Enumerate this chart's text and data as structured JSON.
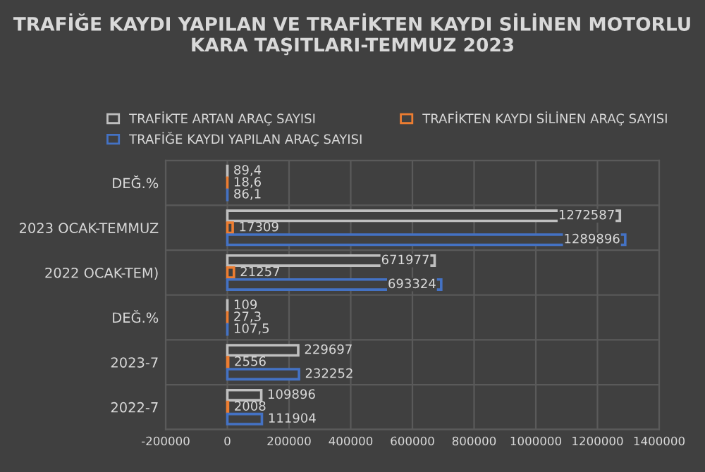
{
  "chart_data": {
    "type": "bar",
    "orientation": "horizontal",
    "title": "TRAFİĞE KAYDI YAPILAN VE TRAFİKTEN KAYDI SİLİNEN MOTORLU KARA TAŞITLARI-TEMMUZ 2023",
    "categories": [
      "DEĞ.%",
      "2023 OCAK-TEMMUZ",
      "2022 OCAK-TEM)",
      "DEĞ.%",
      "2023-7",
      "2022-7"
    ],
    "series": [
      {
        "name": "TRAFİKTE ARTAN ARAÇ SAYISI",
        "color": "#bfbfbf",
        "values": [
          89.4,
          1272587,
          671977,
          109,
          229697,
          109896
        ],
        "value_labels": [
          "89,4",
          "1272587",
          "671977",
          "109",
          "229697",
          "109896"
        ]
      },
      {
        "name": "TRAFİKTEN KAYDI SİLİNEN ARAÇ SAYISI",
        "color": "#ed7d31",
        "values": [
          18.6,
          17309,
          21257,
          27.3,
          2556,
          2008
        ],
        "value_labels": [
          "18,6",
          "17309",
          "21257",
          "27,3",
          "2556",
          "2008"
        ]
      },
      {
        "name": "TRAFİĞE KAYDI YAPILAN ARAÇ SAYISI",
        "color": "#4472c4",
        "values": [
          86.1,
          1289896,
          693324,
          107.5,
          232252,
          111904
        ],
        "value_labels": [
          "86,1",
          "1289896",
          "693324",
          "107,5",
          "232252",
          "111904"
        ]
      }
    ],
    "xlim": [
      -200000,
      1400000
    ],
    "xticks": [
      -200000,
      0,
      200000,
      400000,
      600000,
      800000,
      1000000,
      1200000,
      1400000
    ],
    "grid": true,
    "legend": "top"
  }
}
